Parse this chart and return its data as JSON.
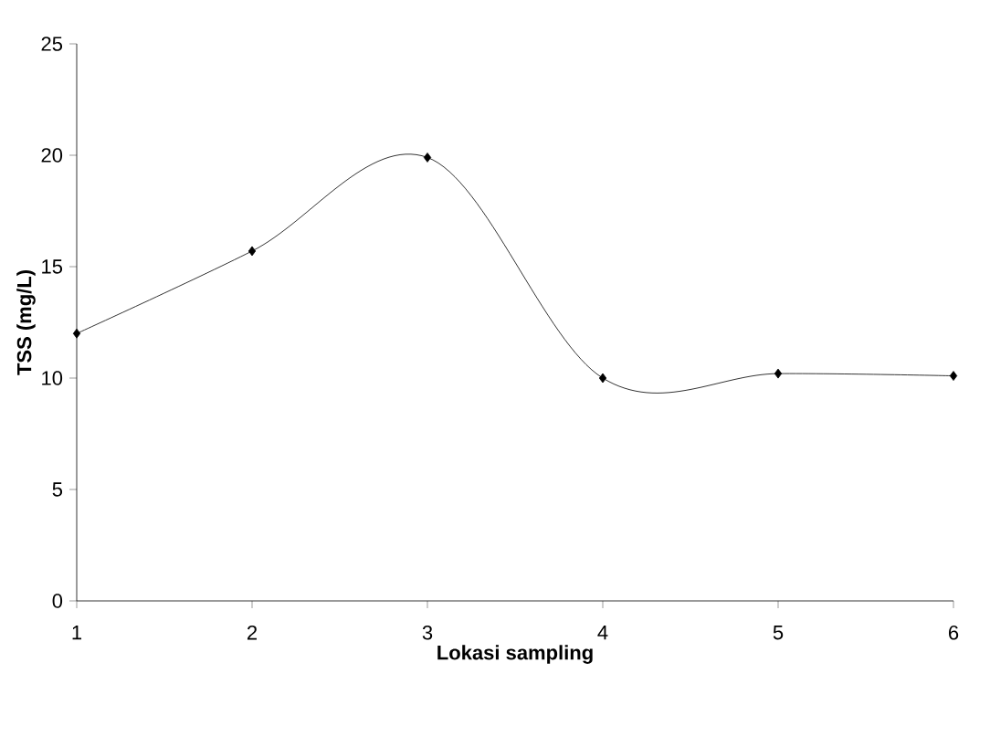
{
  "chart_data": {
    "type": "line",
    "xlabel": "Lokasi sampling",
    "ylabel": "TSS (mg/L)",
    "x": [
      1,
      2,
      3,
      4,
      5,
      6
    ],
    "values": [
      12,
      15.7,
      19.9,
      10,
      10.2,
      10.1
    ],
    "color": "#000000",
    "marker": "diamond",
    "line_style": "solid",
    "xlim": [
      1,
      6
    ],
    "ylim": [
      0,
      25
    ],
    "xticks": [
      1,
      2,
      3,
      4,
      5,
      6
    ],
    "yticks": [
      0,
      5,
      10,
      15,
      20,
      25
    ]
  }
}
